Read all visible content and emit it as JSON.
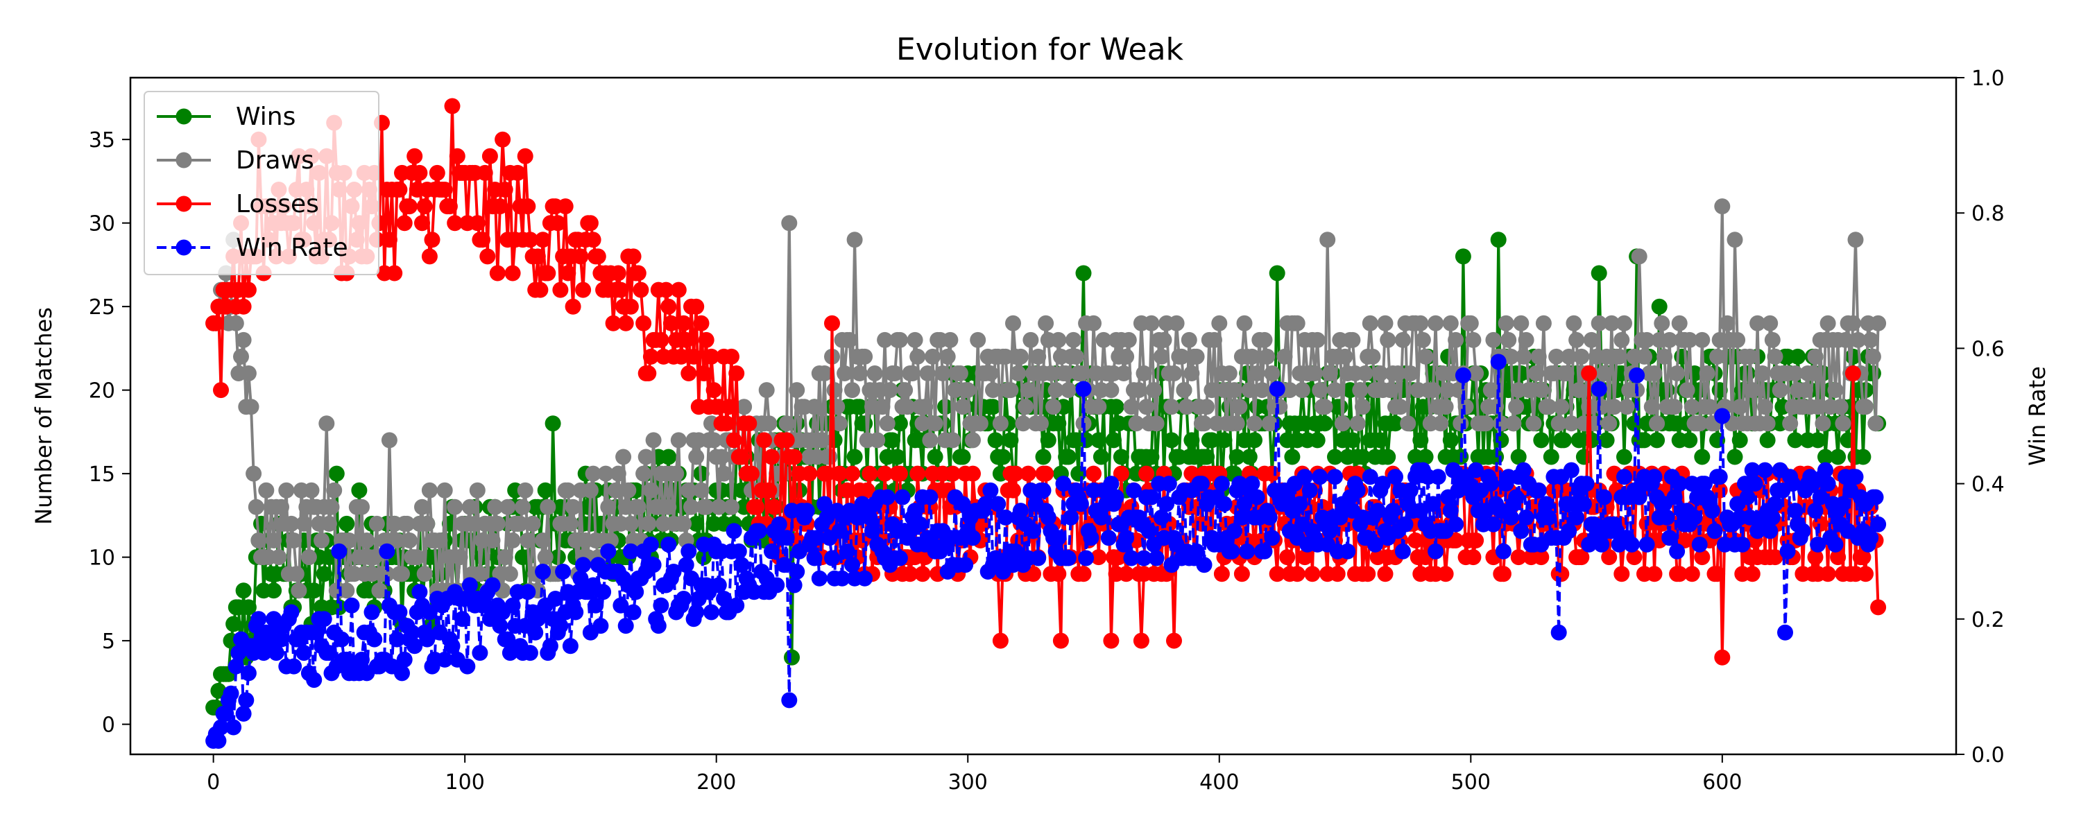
{
  "chart_data": {
    "type": "line",
    "title": "Evolution for Weak",
    "xlabel": "",
    "ylabel": "Number of Matches",
    "y2label": "Win Rate",
    "xlim": [
      -33,
      693
    ],
    "ylim": [
      -1.8,
      38.7
    ],
    "y2lim": [
      0,
      1.0
    ],
    "xticks": [
      0,
      100,
      200,
      300,
      400,
      500,
      600
    ],
    "yticks": [
      0,
      5,
      10,
      15,
      20,
      25,
      30,
      35
    ],
    "y2ticks": [
      0.0,
      0.2,
      0.4,
      0.6,
      0.8,
      1.0
    ],
    "y2tick_labels": [
      "0.0",
      "0.2",
      "0.4",
      "0.6",
      "0.8",
      "1.0"
    ],
    "grid": false,
    "legend_position": "top-left",
    "series": [
      {
        "name": "Wins",
        "axis": "left",
        "color": "#008000",
        "linestyle": "solid",
        "keypoints": [
          [
            0,
            1
          ],
          [
            5,
            3
          ],
          [
            10,
            5
          ],
          [
            15,
            7
          ],
          [
            20,
            10
          ],
          [
            30,
            9
          ],
          [
            40,
            8
          ],
          [
            50,
            10
          ],
          [
            60,
            11
          ],
          [
            80,
            9
          ],
          [
            100,
            10
          ],
          [
            120,
            11
          ],
          [
            140,
            12
          ],
          [
            160,
            12
          ],
          [
            180,
            13
          ],
          [
            200,
            13
          ],
          [
            220,
            14
          ],
          [
            240,
            16
          ],
          [
            260,
            17
          ],
          [
            280,
            17
          ],
          [
            300,
            18
          ],
          [
            320,
            18
          ],
          [
            340,
            18
          ],
          [
            360,
            17
          ],
          [
            380,
            18
          ],
          [
            400,
            17
          ],
          [
            420,
            18
          ],
          [
            440,
            18
          ],
          [
            460,
            18
          ],
          [
            480,
            19
          ],
          [
            500,
            19
          ],
          [
            520,
            19
          ],
          [
            540,
            19
          ],
          [
            560,
            19
          ],
          [
            580,
            19
          ],
          [
            600,
            19
          ],
          [
            620,
            19
          ],
          [
            640,
            19
          ],
          [
            660,
            19
          ]
        ],
        "noise": 3.2,
        "extremes": [
          [
            49,
            15
          ],
          [
            135,
            18
          ],
          [
            230,
            4
          ],
          [
            346,
            27
          ],
          [
            423,
            27
          ],
          [
            497,
            28
          ],
          [
            511,
            29
          ],
          [
            551,
            27
          ],
          [
            566,
            28
          ],
          [
            575,
            25
          ]
        ]
      },
      {
        "name": "Draws",
        "axis": "left",
        "color": "#808080",
        "linestyle": "solid",
        "keypoints": [
          [
            0,
            24
          ],
          [
            5,
            26
          ],
          [
            10,
            21
          ],
          [
            15,
            17
          ],
          [
            20,
            12
          ],
          [
            30,
            11
          ],
          [
            40,
            11
          ],
          [
            60,
            11
          ],
          [
            80,
            11
          ],
          [
            100,
            11
          ],
          [
            120,
            11
          ],
          [
            140,
            12
          ],
          [
            160,
            13
          ],
          [
            180,
            14
          ],
          [
            200,
            15
          ],
          [
            220,
            17
          ],
          [
            240,
            19
          ],
          [
            260,
            20
          ],
          [
            280,
            20
          ],
          [
            300,
            20
          ],
          [
            320,
            21
          ],
          [
            340,
            21
          ],
          [
            360,
            21
          ],
          [
            380,
            21
          ],
          [
            400,
            21
          ],
          [
            420,
            21
          ],
          [
            440,
            21
          ],
          [
            460,
            21
          ],
          [
            480,
            21
          ],
          [
            500,
            21
          ],
          [
            520,
            21
          ],
          [
            540,
            21
          ],
          [
            560,
            21
          ],
          [
            580,
            21
          ],
          [
            600,
            21
          ],
          [
            620,
            21
          ],
          [
            640,
            21
          ],
          [
            660,
            21
          ]
        ],
        "noise": 3.2,
        "extremes": [
          [
            8,
            29
          ],
          [
            12,
            23
          ],
          [
            45,
            18
          ],
          [
            70,
            17
          ],
          [
            229,
            30
          ],
          [
            255,
            29
          ],
          [
            443,
            29
          ],
          [
            567,
            28
          ],
          [
            600,
            31
          ],
          [
            605,
            29
          ],
          [
            653,
            29
          ]
        ]
      },
      {
        "name": "Losses",
        "axis": "left",
        "color": "#ff0000",
        "linestyle": "solid",
        "keypoints": [
          [
            0,
            24
          ],
          [
            5,
            25
          ],
          [
            10,
            27
          ],
          [
            20,
            30
          ],
          [
            30,
            31
          ],
          [
            40,
            31
          ],
          [
            60,
            30
          ],
          [
            80,
            31
          ],
          [
            100,
            31
          ],
          [
            120,
            30
          ],
          [
            140,
            28
          ],
          [
            160,
            26
          ],
          [
            180,
            24
          ],
          [
            200,
            21
          ],
          [
            210,
            17
          ],
          [
            220,
            14
          ],
          [
            240,
            13
          ],
          [
            260,
            12
          ],
          [
            280,
            12
          ],
          [
            300,
            12
          ],
          [
            320,
            12
          ],
          [
            340,
            12
          ],
          [
            360,
            12
          ],
          [
            380,
            12
          ],
          [
            400,
            12
          ],
          [
            420,
            12
          ],
          [
            440,
            12
          ],
          [
            460,
            12
          ],
          [
            480,
            12
          ],
          [
            500,
            12
          ],
          [
            520,
            12
          ],
          [
            540,
            12
          ],
          [
            560,
            12
          ],
          [
            580,
            12
          ],
          [
            600,
            12
          ],
          [
            620,
            12
          ],
          [
            640,
            12
          ],
          [
            660,
            12
          ]
        ],
        "noise": 3.4,
        "extremes": [
          [
            3,
            20
          ],
          [
            18,
            35
          ],
          [
            48,
            36
          ],
          [
            67,
            36
          ],
          [
            95,
            37
          ],
          [
            115,
            35
          ],
          [
            124,
            34
          ],
          [
            246,
            24
          ],
          [
            313,
            5
          ],
          [
            337,
            5
          ],
          [
            357,
            5
          ],
          [
            369,
            5
          ],
          [
            382,
            5
          ],
          [
            547,
            21
          ],
          [
            600,
            4
          ],
          [
            652,
            21
          ],
          [
            662,
            7
          ]
        ]
      },
      {
        "name": "Win Rate",
        "axis": "right",
        "color": "#0000ff",
        "linestyle": "dashed",
        "keypoints": [
          [
            0,
            0.02
          ],
          [
            5,
            0.06
          ],
          [
            10,
            0.11
          ],
          [
            20,
            0.16
          ],
          [
            40,
            0.17
          ],
          [
            60,
            0.17
          ],
          [
            80,
            0.18
          ],
          [
            100,
            0.19
          ],
          [
            120,
            0.2
          ],
          [
            140,
            0.22
          ],
          [
            160,
            0.24
          ],
          [
            180,
            0.25
          ],
          [
            200,
            0.26
          ],
          [
            220,
            0.29
          ],
          [
            240,
            0.31
          ],
          [
            260,
            0.32
          ],
          [
            280,
            0.33
          ],
          [
            300,
            0.33
          ],
          [
            320,
            0.33
          ],
          [
            340,
            0.34
          ],
          [
            360,
            0.34
          ],
          [
            380,
            0.34
          ],
          [
            400,
            0.34
          ],
          [
            420,
            0.35
          ],
          [
            440,
            0.35
          ],
          [
            460,
            0.35
          ],
          [
            480,
            0.36
          ],
          [
            500,
            0.36
          ],
          [
            520,
            0.36
          ],
          [
            540,
            0.36
          ],
          [
            560,
            0.36
          ],
          [
            580,
            0.36
          ],
          [
            600,
            0.36
          ],
          [
            620,
            0.36
          ],
          [
            640,
            0.36
          ],
          [
            660,
            0.36
          ]
        ],
        "noise": 0.06,
        "extremes": [
          [
            0,
            0.02
          ],
          [
            50,
            0.3
          ],
          [
            69,
            0.3
          ],
          [
            229,
            0.08
          ],
          [
            346,
            0.54
          ],
          [
            423,
            0.54
          ],
          [
            497,
            0.56
          ],
          [
            511,
            0.58
          ],
          [
            535,
            0.18
          ],
          [
            551,
            0.54
          ],
          [
            566,
            0.56
          ],
          [
            600,
            0.5
          ],
          [
            625,
            0.18
          ]
        ]
      }
    ]
  }
}
